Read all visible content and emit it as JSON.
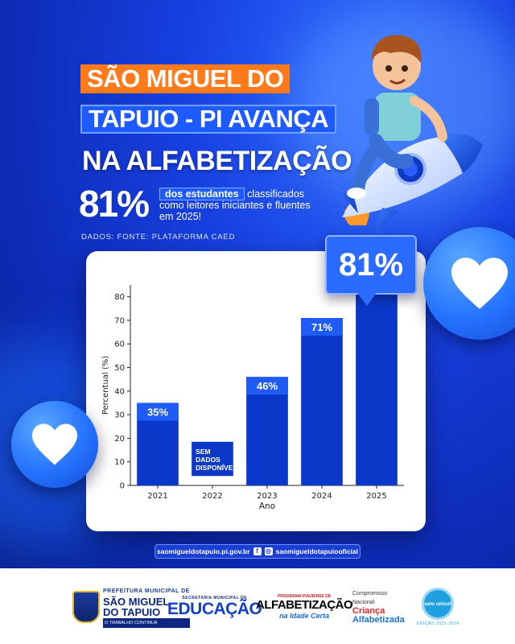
{
  "headline": {
    "line1": "SÃO MIGUEL DO",
    "line2": "TAPUIO - PI AVANÇA",
    "line3": "NA ALFABETIZAÇÃO"
  },
  "stat": {
    "value": "81%",
    "highlight": "dos estudantes",
    "text_a": "classificados",
    "text_b": "como leitores iniciantes e fluentes",
    "text_c": "em 2025!"
  },
  "source": "DADOS: FONTE: PLATAFORMA CAED",
  "callout": "81%",
  "chart_data": {
    "type": "bar",
    "categories": [
      "2021",
      "2022",
      "2023",
      "2024",
      "2025"
    ],
    "values": [
      35,
      null,
      46,
      71,
      81
    ],
    "data_labels": [
      "35%",
      "SEM DADOS DISPONÍVEIS",
      "46%",
      "71%",
      ""
    ],
    "xlabel": "Ano",
    "ylabel": "Percentual (%)",
    "ylim": [
      0,
      85
    ],
    "yticks": [
      0,
      10,
      20,
      30,
      40,
      50,
      60,
      70,
      80
    ],
    "grid": false,
    "colors": {
      "bar": "#0c38c9",
      "label_bg": "#1e5cf5"
    }
  },
  "footer": {
    "site": "saomigueldotapuio.pi.gov.br",
    "social": "saomigueldotapuiooficial"
  },
  "logos": {
    "city": {
      "top": "PREFEITURA MUNICIPAL DE",
      "name1": "SÃO MIGUEL",
      "name2": "DO TAPUIO",
      "slogan": "O TRABALHO CONTINUA"
    },
    "edu": {
      "top": "SECRETARIA MUNICIPAL DE",
      "name": "EDUCAÇÃO"
    },
    "alfa": {
      "top": "PROGRAMA PIAUIENSE DE",
      "name": "ALFABETIZAÇÃO",
      "tag": "na Idade Certa"
    },
    "crianca": {
      "l1": "Compromisso",
      "l2": "Nacional",
      "l3": "Criança",
      "l4": "Alfabetizada"
    },
    "unicef": {
      "name": "selo unicef",
      "sub": "EDIÇÃO 2021-2024"
    }
  },
  "colors": {
    "accent_orange": "#ff7a1a",
    "primary_blue": "#1e5bff",
    "dark_blue": "#0d2bb5"
  }
}
